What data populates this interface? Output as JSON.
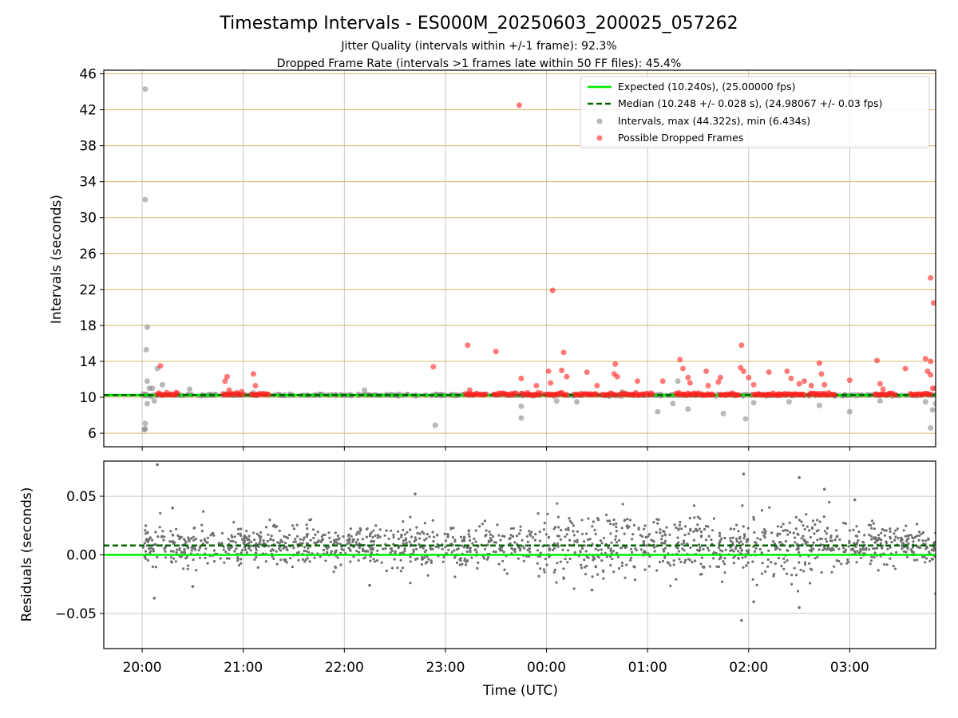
{
  "chart_data": {
    "type": "scatter",
    "title": "Timestamp Intervals - ES000M_20250603_200025_057262",
    "subtitle_lines": [
      "Jitter Quality (intervals within +/-1 frame): 92.3%",
      "Dropped Frame Rate (intervals >1 frames late within 50 FF files): 45.4%"
    ],
    "xlabel": "Time (UTC)",
    "x_ticks": [
      "20:00",
      "21:00",
      "22:00",
      "23:00",
      "00:00",
      "01:00",
      "02:00",
      "03:00"
    ],
    "x_range_hours": [
      -0.38,
      7.85
    ],
    "top": {
      "ylabel": "Intervals (seconds)",
      "ylim": [
        4.5,
        46.4
      ],
      "y_ticks": [
        "6",
        "10",
        "14",
        "18",
        "22",
        "26",
        "30",
        "34",
        "38",
        "42",
        "46"
      ],
      "y_tick_values": [
        6,
        10,
        14,
        18,
        22,
        26,
        30,
        34,
        38,
        42,
        46
      ],
      "hgrid_color": "#d4b86a",
      "expected_value": 10.24,
      "median_value": 10.248,
      "legend": {
        "placement": "top-right",
        "entries": [
          "Expected (10.240s), (25.00000 fps)",
          "Median (10.248 +/- 0.028 s), (24.98067 +/- 0.03 fps)",
          "Intervals, max (44.322s), min (6.434s)",
          "Possible Dropped Frames"
        ]
      },
      "intervals_outliers": [
        [
          0.03,
          44.3
        ],
        [
          0.03,
          32.0
        ],
        [
          0.05,
          17.8
        ],
        [
          0.04,
          15.3
        ],
        [
          0.05,
          11.8
        ],
        [
          0.07,
          11.0
        ],
        [
          0.1,
          11.0
        ],
        [
          0.15,
          13.2
        ],
        [
          0.2,
          11.4
        ],
        [
          0.03,
          7.1
        ],
        [
          0.03,
          6.5
        ],
        [
          0.02,
          6.4
        ],
        [
          0.05,
          9.3
        ],
        [
          0.12,
          9.6
        ],
        [
          0.47,
          10.9
        ],
        [
          1.1,
          10.5
        ],
        [
          2.2,
          10.8
        ],
        [
          2.9,
          6.9
        ],
        [
          3.75,
          9.0
        ],
        [
          3.75,
          7.7
        ],
        [
          4.1,
          9.6
        ],
        [
          4.3,
          9.5
        ],
        [
          4.75,
          10.6
        ],
        [
          5.1,
          8.4
        ],
        [
          5.25,
          9.3
        ],
        [
          5.3,
          11.8
        ],
        [
          5.4,
          8.7
        ],
        [
          5.75,
          8.2
        ],
        [
          5.97,
          7.6
        ],
        [
          6.05,
          9.4
        ],
        [
          6.4,
          9.5
        ],
        [
          6.7,
          9.1
        ],
        [
          7.0,
          8.4
        ],
        [
          7.3,
          9.6
        ],
        [
          7.75,
          9.5
        ],
        [
          7.8,
          6.6
        ],
        [
          7.82,
          8.6
        ],
        [
          7.85,
          9.3
        ]
      ],
      "dropped_frames": [
        [
          0.18,
          13.5
        ],
        [
          0.82,
          11.8
        ],
        [
          0.84,
          12.3
        ],
        [
          0.86,
          10.8
        ],
        [
          1.1,
          12.6
        ],
        [
          1.12,
          11.3
        ],
        [
          2.88,
          13.4
        ],
        [
          3.22,
          15.8
        ],
        [
          3.24,
          10.8
        ],
        [
          3.5,
          15.1
        ],
        [
          3.73,
          42.5
        ],
        [
          3.75,
          12.1
        ],
        [
          3.9,
          11.3
        ],
        [
          4.02,
          12.9
        ],
        [
          4.06,
          21.9
        ],
        [
          4.15,
          13.0
        ],
        [
          4.17,
          15.0
        ],
        [
          4.2,
          12.3
        ],
        [
          4.04,
          11.6
        ],
        [
          4.4,
          12.8
        ],
        [
          4.5,
          11.3
        ],
        [
          4.7,
          12.3
        ],
        [
          4.68,
          13.7
        ],
        [
          4.67,
          12.6
        ],
        [
          4.9,
          11.8
        ],
        [
          5.15,
          11.8
        ],
        [
          5.32,
          14.2
        ],
        [
          5.35,
          13.2
        ],
        [
          5.4,
          12.2
        ],
        [
          5.42,
          11.6
        ],
        [
          5.58,
          12.9
        ],
        [
          5.6,
          11.3
        ],
        [
          5.7,
          11.7
        ],
        [
          5.72,
          12.2
        ],
        [
          5.93,
          15.8
        ],
        [
          5.95,
          12.9
        ],
        [
          6.0,
          12.2
        ],
        [
          6.05,
          11.4
        ],
        [
          5.92,
          13.3
        ],
        [
          6.2,
          12.8
        ],
        [
          6.38,
          12.9
        ],
        [
          6.42,
          12.1
        ],
        [
          6.5,
          11.5
        ],
        [
          6.55,
          11.8
        ],
        [
          6.62,
          11.3
        ],
        [
          6.7,
          13.8
        ],
        [
          6.72,
          12.6
        ],
        [
          6.75,
          11.4
        ],
        [
          7.0,
          11.9
        ],
        [
          7.27,
          14.1
        ],
        [
          7.3,
          11.5
        ],
        [
          7.33,
          10.9
        ],
        [
          7.55,
          13.2
        ],
        [
          7.75,
          14.3
        ],
        [
          7.77,
          12.9
        ],
        [
          7.8,
          12.5
        ],
        [
          7.8,
          14.0
        ],
        [
          7.8,
          23.3
        ],
        [
          7.83,
          20.5
        ],
        [
          7.82,
          11.0
        ],
        [
          7.85,
          11.0
        ]
      ],
      "dropped_frame_clusters": [
        [
          0.15,
          0.35
        ],
        [
          0.8,
          1.0
        ],
        [
          1.08,
          1.25
        ],
        [
          3.2,
          3.4
        ],
        [
          3.48,
          3.7
        ],
        [
          3.75,
          3.95
        ],
        [
          4.0,
          4.2
        ],
        [
          4.28,
          4.5
        ],
        [
          4.55,
          4.68
        ],
        [
          4.72,
          4.9
        ],
        [
          4.9,
          5.05
        ],
        [
          5.28,
          5.65
        ],
        [
          5.72,
          5.9
        ],
        [
          6.05,
          6.3
        ],
        [
          6.3,
          6.55
        ],
        [
          6.6,
          6.85
        ],
        [
          7.25,
          7.45
        ],
        [
          7.6,
          7.8
        ]
      ]
    },
    "bottom": {
      "ylabel": "Residuals (seconds)",
      "ylim": [
        -0.08,
        0.08
      ],
      "y_ticks": [
        "−0.05",
        "0.00",
        "0.05"
      ],
      "y_tick_values": [
        -0.05,
        0.0,
        0.05
      ],
      "expected_value": 0.0,
      "median_value": 0.008,
      "residual_outliers": [
        [
          0.15,
          0.077
        ],
        [
          0.12,
          -0.037
        ],
        [
          0.3,
          0.04
        ],
        [
          0.5,
          -0.027
        ],
        [
          2.25,
          -0.026
        ],
        [
          2.7,
          0.052
        ],
        [
          4.45,
          -0.03
        ],
        [
          5.95,
          0.069
        ],
        [
          5.93,
          -0.056
        ],
        [
          6.05,
          -0.04
        ],
        [
          6.5,
          0.066
        ],
        [
          6.5,
          -0.045
        ],
        [
          6.75,
          0.056
        ],
        [
          7.05,
          0.047
        ],
        [
          7.85,
          -0.033
        ]
      ]
    },
    "colors": {
      "expected": "#00ee00",
      "median": "#006400",
      "intervals": "#808080",
      "dropped": "#ff2020",
      "grid": "#c8c8c8"
    }
  }
}
